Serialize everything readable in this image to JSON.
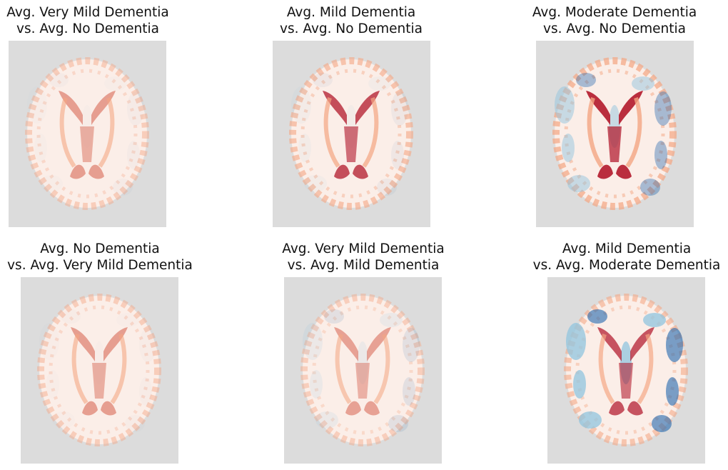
{
  "figure": {
    "panels": [
      {
        "title_line1": "Avg. Very Mild Dementia",
        "title_line2": "vs. Avg. No Dementia",
        "map": {
          "positive_intensity": 0.45,
          "negative_intensity": 0.04,
          "colormap": "red-blue diverging"
        }
      },
      {
        "title_line1": "Avg. Mild Dementia",
        "title_line2": "vs. Avg. No Dementia",
        "map": {
          "positive_intensity": 0.75,
          "negative_intensity": 0.08,
          "colormap": "red-blue diverging"
        }
      },
      {
        "title_line1": "Avg. Moderate Dementia",
        "title_line2": "vs. Avg. No Dementia",
        "map": {
          "positive_intensity": 1.0,
          "negative_intensity": 0.55,
          "colormap": "red-blue diverging"
        }
      },
      {
        "title_line1": "Avg. No Dementia",
        "title_line2": "vs. Avg. Very Mild Dementia",
        "map": {
          "positive_intensity": 0.45,
          "negative_intensity": 0.03,
          "colormap": "red-blue diverging"
        }
      },
      {
        "title_line1": "Avg. Very Mild Dementia",
        "title_line2": "vs. Avg. Mild Dementia",
        "map": {
          "positive_intensity": 0.4,
          "negative_intensity": 0.15,
          "colormap": "red-blue diverging"
        }
      },
      {
        "title_line1": "Avg. Mild Dementia",
        "title_line2": "vs. Avg. Moderate Dementia",
        "map": {
          "positive_intensity": 0.7,
          "negative_intensity": 0.85,
          "colormap": "red-blue diverging"
        }
      }
    ],
    "colors": {
      "background": "#dcdcdc",
      "positive": "#b2182b",
      "positive_light": "#f4a582",
      "negative": "#2166ac",
      "negative_light": "#92c5de"
    }
  }
}
